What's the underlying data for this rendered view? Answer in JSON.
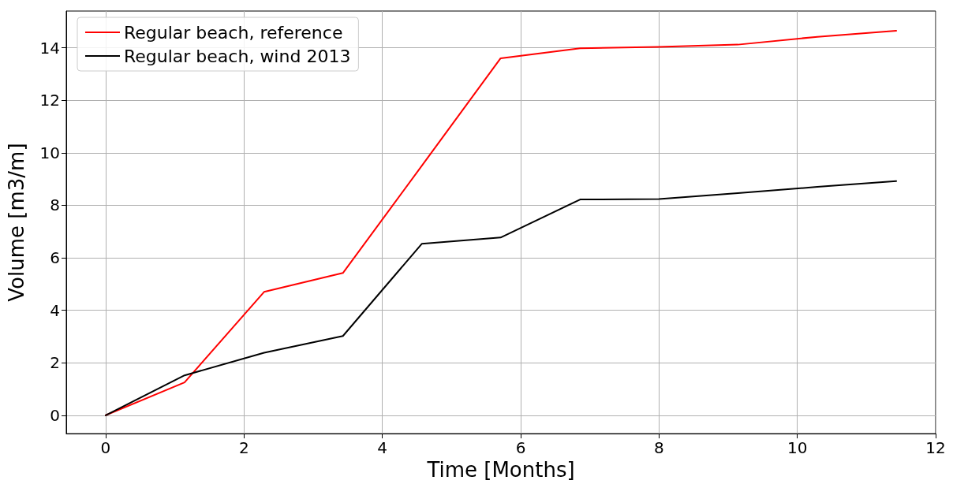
{
  "chart_data": {
    "type": "line",
    "xlabel": "Time [Months]",
    "ylabel": "Volume [m3/m]",
    "x": [
      0,
      1.14,
      2.29,
      3.43,
      4.57,
      5.71,
      6.86,
      8.0,
      9.14,
      10.29,
      11.43
    ],
    "series": [
      {
        "name": "Regular beach, reference",
        "color": "#ff0000",
        "values": [
          0,
          1.25,
          4.7,
          5.42,
          9.5,
          13.6,
          13.98,
          14.03,
          14.12,
          14.42,
          14.65
        ]
      },
      {
        "name": "Regular beach, wind 2013",
        "color": "#000000",
        "values": [
          0,
          1.52,
          2.38,
          3.02,
          6.53,
          6.77,
          8.22,
          8.24,
          8.46,
          8.7,
          8.92
        ]
      }
    ],
    "xlim": [
      -0.57,
      12
    ],
    "ylim": [
      -0.7,
      15.4
    ],
    "xticks": [
      0,
      2,
      4,
      6,
      8,
      10,
      12
    ],
    "yticks": [
      0,
      2,
      4,
      6,
      8,
      10,
      12,
      14
    ],
    "grid": true,
    "legend": "top left",
    "marker": "none",
    "line_style": "solid"
  }
}
